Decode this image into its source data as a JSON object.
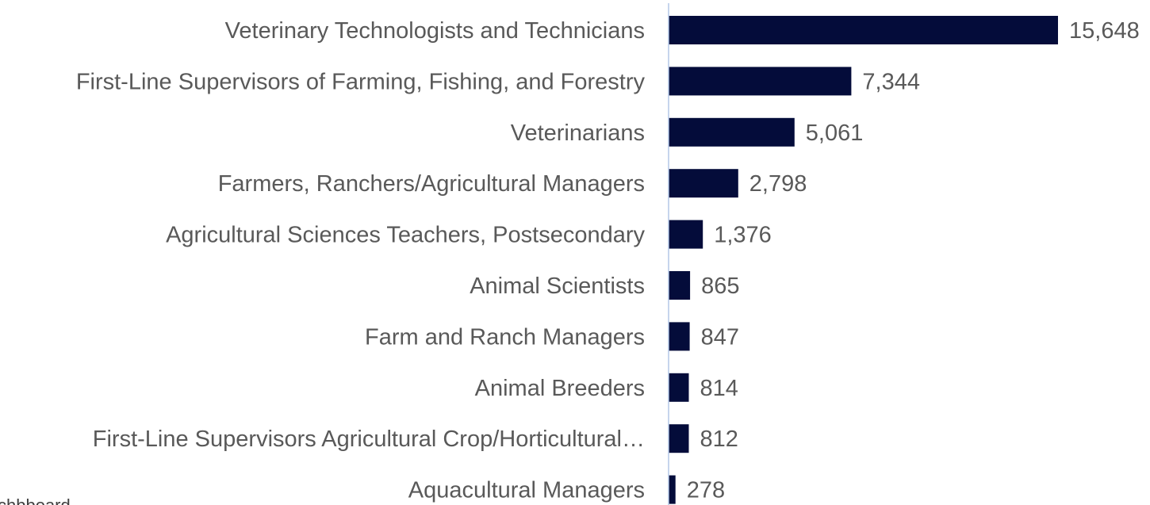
{
  "chart_data": {
    "type": "bar",
    "orientation": "horizontal",
    "categories": [
      "Veterinary Technologists and Technicians",
      "First-Line Supervisors of Farming, Fishing, and Forestry",
      "Veterinarians",
      "Farmers, Ranchers/Agricultural Managers",
      "Agricultural Sciences Teachers, Postsecondary",
      "Animal Scientists",
      "Farm and Ranch Managers",
      "Animal Breeders",
      "First-Line Supervisors Agricultural Crop/Horticultural…",
      "Aquacultural Managers"
    ],
    "values": [
      15648,
      7344,
      5061,
      2798,
      1376,
      865,
      847,
      814,
      812,
      278
    ],
    "value_labels": [
      "15,648",
      "7,344",
      "5,061",
      "2,798",
      "1,376",
      "865",
      "847",
      "814",
      "812",
      "278"
    ],
    "xlim": [
      0,
      15648
    ],
    "grid": false,
    "legend": "none",
    "bar_color": "#040c3a",
    "axis_color": "#b4c7e7",
    "label_color": "#595959"
  },
  "footer_fragment": "chbboard"
}
